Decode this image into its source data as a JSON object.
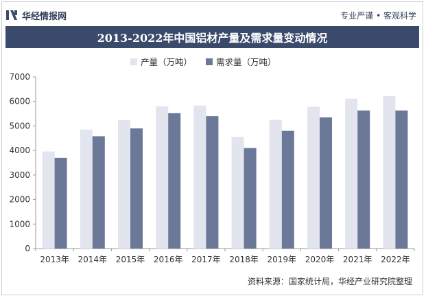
{
  "header": {
    "brand_name": "华经情报网",
    "slogan": "专业严谨 • 客观科学",
    "title": "2013-2022年中国铝材产量及需求量变动情况"
  },
  "footer": {
    "source": "资料来源：国家统计局，华经产业研究院整理"
  },
  "colors": {
    "production": "#e2e5ee",
    "demand": "#6b7898",
    "title_bg": "#3a4a6b"
  },
  "chart_data": {
    "type": "bar",
    "categories": [
      "2013年",
      "2014年",
      "2015年",
      "2016年",
      "2017年",
      "2018年",
      "2019年",
      "2020年",
      "2021年",
      "2022年"
    ],
    "series": [
      {
        "name": "产量（万吨）",
        "values": [
          3960,
          4850,
          5240,
          5800,
          5830,
          4550,
          5250,
          5780,
          6110,
          6220
        ]
      },
      {
        "name": "需求量（万吨）",
        "values": [
          3700,
          4580,
          4900,
          5520,
          5400,
          4100,
          4800,
          5350,
          5630,
          5630
        ]
      }
    ],
    "yticks": [
      0,
      1000,
      2000,
      3000,
      4000,
      5000,
      6000,
      7000
    ],
    "ylim": [
      0,
      7000
    ],
    "legend_position": "top-left",
    "grid": false
  }
}
